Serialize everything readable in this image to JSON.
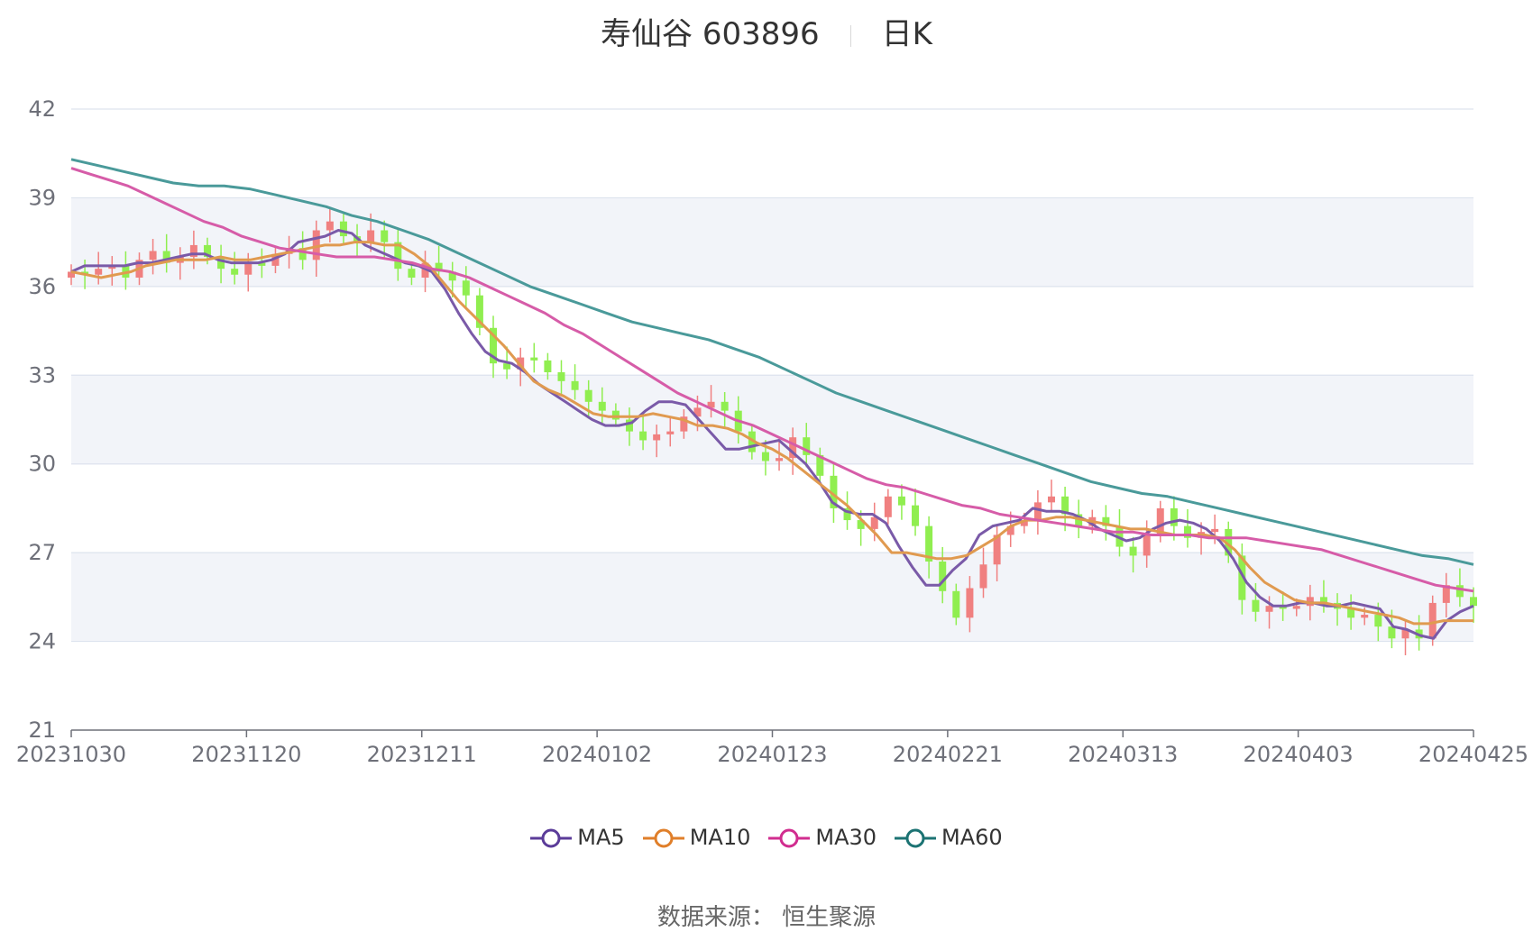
{
  "title": {
    "name": "寿仙谷 603896",
    "period": "日K"
  },
  "legend": [
    {
      "label": "MA5",
      "color": "#5b3c99"
    },
    {
      "label": "MA10",
      "color": "#e07f2a"
    },
    {
      "label": "MA30",
      "color": "#d12d8f"
    },
    {
      "label": "MA60",
      "color": "#1c7373"
    }
  ],
  "source": {
    "label": "数据来源：",
    "name": "恒生聚源"
  },
  "chart_data": {
    "type": "candlestick",
    "ylim": [
      21,
      42
    ],
    "yticks": [
      21,
      24,
      27,
      30,
      33,
      36,
      39,
      42
    ],
    "xticks": [
      "20231030",
      "20231120",
      "20231211",
      "20240102",
      "20240123",
      "20240221",
      "20240313",
      "20240403",
      "20240425"
    ],
    "grid": true,
    "legend_position": "bottom",
    "colors": {
      "up": "#f08080",
      "down": "#90ee50",
      "grid": "#dde3ee",
      "band": "#f2f4f9",
      "axis": "#6e7079"
    },
    "series": [
      {
        "name": "MA5",
        "color": "#7a5aa8",
        "values": [
          36.5,
          36.7,
          36.7,
          36.7,
          36.7,
          36.8,
          36.8,
          36.9,
          37,
          37.1,
          37.1,
          36.9,
          36.8,
          36.8,
          36.8,
          36.9,
          37.1,
          37.5,
          37.6,
          37.7,
          37.9,
          37.8,
          37.4,
          37.2,
          37,
          36.8,
          36.7,
          36.5,
          35.9,
          35.1,
          34.4,
          33.8,
          33.5,
          33.4,
          33.1,
          32.7,
          32.4,
          32.1,
          31.8,
          31.5,
          31.3,
          31.3,
          31.4,
          31.8,
          32.1,
          32.1,
          32,
          31.5,
          31,
          30.5,
          30.5,
          30.6,
          30.7,
          30.8,
          30.4,
          30,
          29.4,
          28.7,
          28.4,
          28.3,
          28.3,
          28,
          27.2,
          26.5,
          25.9,
          25.9,
          26.4,
          26.8,
          27.6,
          27.9,
          28,
          28.1,
          28.5,
          28.4,
          28.4,
          28.3,
          28.1,
          27.8,
          27.6,
          27.4,
          27.5,
          27.8,
          28,
          28.1,
          28,
          27.8,
          27.4,
          26.8,
          26,
          25.5,
          25.2,
          25.2,
          25.3,
          25.3,
          25.2,
          25.2,
          25.3,
          25.2,
          25.1,
          24.5,
          24.4,
          24.2,
          24.1,
          24.7,
          25,
          25.2
        ]
      },
      {
        "name": "MA10",
        "color": "#e09a50",
        "values": [
          36.5,
          36.4,
          36.3,
          36.4,
          36.5,
          36.7,
          36.8,
          36.9,
          36.9,
          36.9,
          37,
          36.9,
          36.9,
          37,
          37.1,
          37.2,
          37.3,
          37.4,
          37.4,
          37.5,
          37.5,
          37.4,
          37.4,
          37.1,
          36.7,
          36.1,
          35.5,
          35,
          34.5,
          34,
          33.4,
          32.8,
          32.5,
          32.3,
          32,
          31.7,
          31.6,
          31.6,
          31.6,
          31.7,
          31.6,
          31.5,
          31.3,
          31.3,
          31.2,
          31,
          30.7,
          30.5,
          30.2,
          29.8,
          29.4,
          29,
          28.6,
          28.1,
          27.6,
          27,
          27,
          26.9,
          26.8,
          26.8,
          26.9,
          27.2,
          27.5,
          27.9,
          28.1,
          28.1,
          28.2,
          28.2,
          28.1,
          28,
          27.9,
          27.8,
          27.8,
          27.7,
          27.6,
          27.6,
          27.6,
          27.5,
          27.1,
          26.5,
          26,
          25.7,
          25.4,
          25.3,
          25.3,
          25.2,
          25.1,
          25,
          24.9,
          24.8,
          24.6,
          24.6,
          24.7,
          24.7,
          24.7
        ]
      },
      {
        "name": "MA30",
        "color": "#d65ca8",
        "values": [
          40,
          39.8,
          39.6,
          39.4,
          39.1,
          38.8,
          38.5,
          38.2,
          38,
          37.7,
          37.5,
          37.3,
          37.2,
          37.1,
          37,
          37,
          37,
          36.9,
          36.8,
          36.6,
          36.5,
          36.3,
          36,
          35.7,
          35.4,
          35.1,
          34.7,
          34.4,
          34,
          33.6,
          33.2,
          32.8,
          32.4,
          32.1,
          31.8,
          31.5,
          31.3,
          31,
          30.7,
          30.4,
          30.1,
          29.8,
          29.5,
          29.3,
          29.2,
          29,
          28.8,
          28.6,
          28.5,
          28.3,
          28.2,
          28.1,
          28,
          27.9,
          27.8,
          27.7,
          27.7,
          27.6,
          27.6,
          27.6,
          27.5,
          27.5,
          27.5,
          27.4,
          27.3,
          27.2,
          27.1,
          26.9,
          26.7,
          26.5,
          26.3,
          26.1,
          25.9,
          25.8,
          25.7
        ]
      },
      {
        "name": "MA60",
        "color": "#4a9a9a",
        "values": [
          40.3,
          40.1,
          39.9,
          39.7,
          39.5,
          39.4,
          39.4,
          39.3,
          39.1,
          38.9,
          38.7,
          38.4,
          38.2,
          37.9,
          37.6,
          37.2,
          36.8,
          36.4,
          36,
          35.7,
          35.4,
          35.1,
          34.8,
          34.6,
          34.4,
          34.2,
          33.9,
          33.6,
          33.2,
          32.8,
          32.4,
          32.1,
          31.8,
          31.5,
          31.2,
          30.9,
          30.6,
          30.3,
          30,
          29.7,
          29.4,
          29.2,
          29,
          28.9,
          28.7,
          28.5,
          28.3,
          28.1,
          27.9,
          27.7,
          27.5,
          27.3,
          27.1,
          26.9,
          26.8,
          26.6
        ]
      },
      {
        "name": "K",
        "values": [
          36.5,
          36.4,
          36.6,
          36.7,
          36.3,
          36.9,
          37.2,
          36.8,
          37,
          37.4,
          37,
          36.6,
          36.4,
          36.8,
          36.7,
          37.1,
          37.3,
          36.9,
          37.9,
          38.2,
          37.7,
          37.5,
          37.9,
          37.5,
          36.6,
          36.3,
          36.8,
          36.5,
          36.2,
          35.7,
          34.6,
          33.4,
          33.2,
          33.6,
          33.5,
          33.1,
          32.8,
          32.5,
          32.1,
          31.8,
          31.5,
          31.1,
          30.8,
          31,
          31.1,
          31.6,
          31.9,
          32.1,
          31.8,
          31.1,
          30.4,
          30.1,
          30.2,
          30.9,
          30.3,
          29.6,
          28.5,
          28.1,
          27.8,
          28.2,
          28.9,
          28.6,
          27.9,
          26.7,
          25.7,
          24.8,
          25.8,
          26.6,
          27.6,
          27.9,
          28.1,
          28.7,
          28.9,
          28.3,
          27.9,
          28.2,
          27.9,
          27.2,
          26.9,
          27.6,
          28.5,
          27.9,
          27.5,
          27.7,
          27.8,
          26.9,
          25.4,
          25,
          25.2,
          25.1,
          25.2,
          25.5,
          25.3,
          25.1,
          24.8,
          24.9,
          24.5,
          24.1,
          24.4,
          24.1,
          25.3,
          25.9,
          25.5,
          25.2
        ]
      }
    ]
  }
}
